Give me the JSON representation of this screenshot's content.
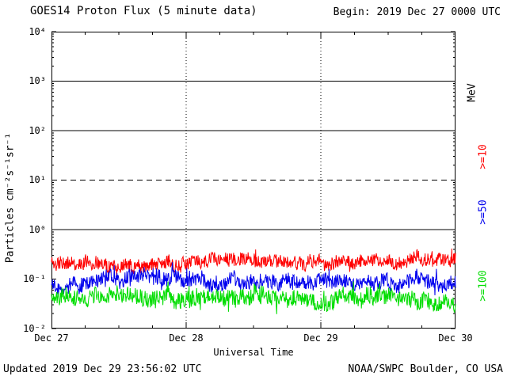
{
  "chart_data": {
    "type": "line",
    "title": "GOES14 Proton Flux (5 minute data)",
    "begin_label": "Begin: 2019 Dec 27 0000 UTC",
    "xlabel": "Universal Time",
    "ylabel": "Particles cm⁻²s⁻¹sr⁻¹",
    "right_axis_unit": "MeV",
    "x_ticks": [
      "Dec 27",
      "Dec 28",
      "Dec 29",
      "Dec 30"
    ],
    "y_tick_labels": [
      "10⁴",
      "10³",
      "10²",
      "10¹",
      "10⁰",
      "10⁻¹",
      "10⁻²"
    ],
    "ylim_log10": [
      -2,
      4
    ],
    "x_range_days": 3,
    "points_per_day": 288,
    "grid": {
      "solid_hlines_log10": [
        3,
        2,
        0
      ],
      "dashed_hlines_log10": [
        1
      ],
      "dotted_vlines_days": [
        1,
        2
      ]
    },
    "legend_position": "right",
    "series": [
      {
        "name": ">=10",
        "color": "#ff0000",
        "approx_flux_mean": 0.22,
        "approx_flux_range": [
          0.12,
          0.5
        ],
        "log10_mean": -0.66,
        "log10_noise": 0.13,
        "log10_spike": 0.16,
        "seed": 11
      },
      {
        "name": ">=50",
        "color": "#0000ee",
        "approx_flux_mean": 0.09,
        "approx_flux_range": [
          0.04,
          0.2
        ],
        "log10_mean": -1.05,
        "log10_noise": 0.15,
        "log10_spike": 0.2,
        "seed": 22
      },
      {
        "name": ">=100",
        "color": "#00dd00",
        "approx_flux_mean": 0.042,
        "approx_flux_range": [
          0.015,
          0.1
        ],
        "log10_mean": -1.38,
        "log10_noise": 0.16,
        "log10_spike": 0.22,
        "seed": 33
      }
    ]
  },
  "footer": {
    "updated": "Updated 2019 Dec 29 23:56:02 UTC",
    "credit": "NOAA/SWPC Boulder, CO USA"
  }
}
